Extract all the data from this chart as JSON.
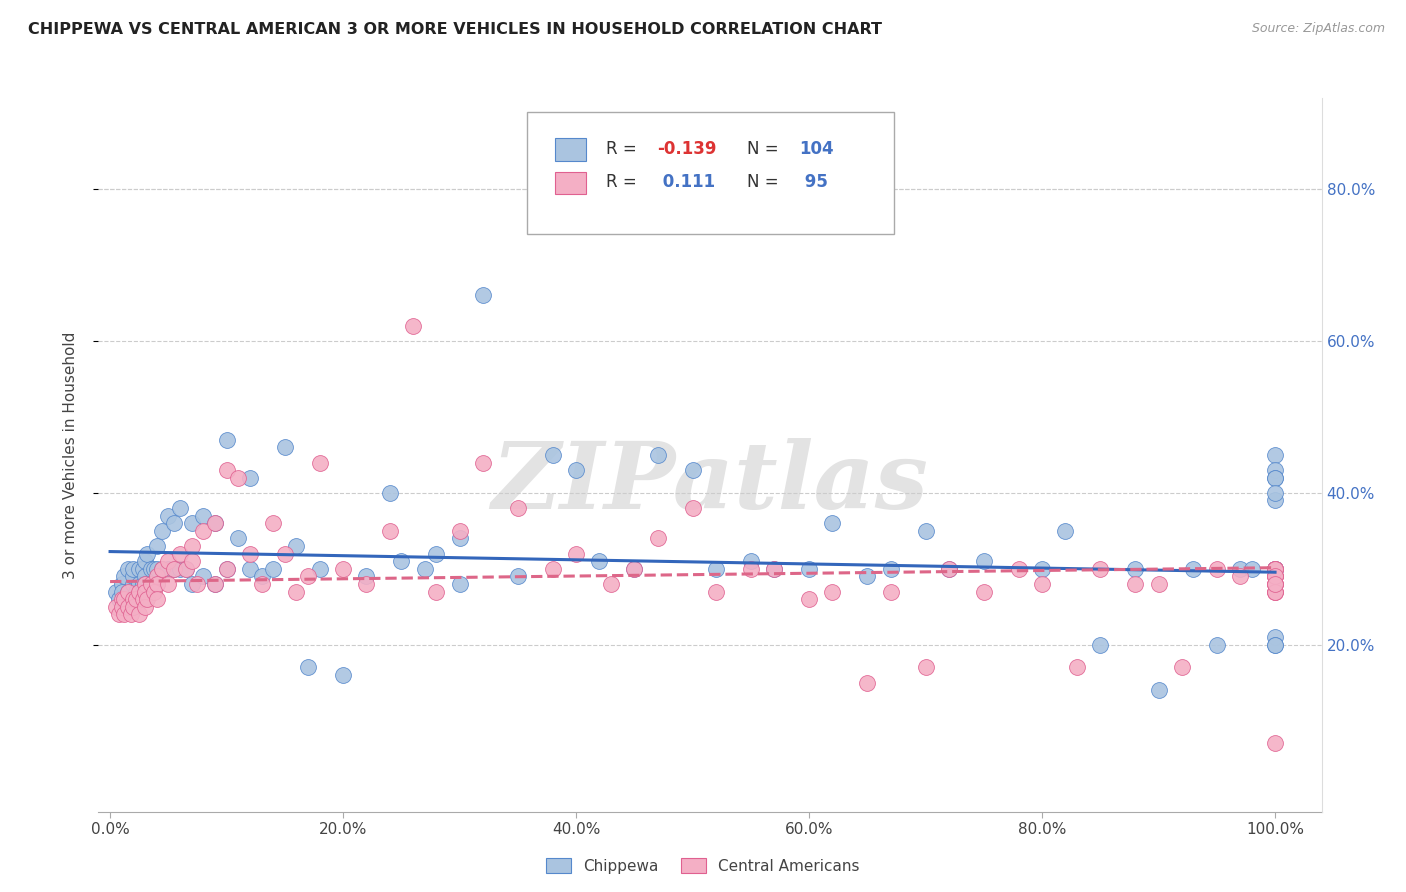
{
  "title": "CHIPPEWA VS CENTRAL AMERICAN 3 OR MORE VEHICLES IN HOUSEHOLD CORRELATION CHART",
  "source": "Source: ZipAtlas.com",
  "ylabel": "3 or more Vehicles in Household",
  "ytick_vals": [
    0.2,
    0.4,
    0.6,
    0.8
  ],
  "ytick_labels": [
    "20.0%",
    "40.0%",
    "60.0%",
    "80.0%"
  ],
  "xtick_vals": [
    0.0,
    0.2,
    0.4,
    0.6,
    0.8,
    1.0
  ],
  "xtick_labels": [
    "0.0%",
    "20.0%",
    "40.0%",
    "60.0%",
    "80.0%",
    "100.0%"
  ],
  "xlim": [
    -0.01,
    1.04
  ],
  "ylim": [
    -0.02,
    0.92
  ],
  "chippewa_color": "#aac4e0",
  "central_color": "#f4afc5",
  "chippewa_edge_color": "#5588cc",
  "central_edge_color": "#e06090",
  "chippewa_line_color": "#3366bb",
  "central_line_color": "#dd6688",
  "chippewa_R": -0.139,
  "central_R": 0.111,
  "watermark": "ZIPatlas",
  "legend_R1": "-0.139",
  "legend_N1": "104",
  "legend_R2": "0.111",
  "legend_N2": "95",
  "chippewa_x": [
    0.005,
    0.008,
    0.01,
    0.01,
    0.012,
    0.012,
    0.015,
    0.015,
    0.015,
    0.02,
    0.02,
    0.02,
    0.02,
    0.022,
    0.025,
    0.025,
    0.025,
    0.025,
    0.028,
    0.028,
    0.03,
    0.03,
    0.03,
    0.03,
    0.032,
    0.035,
    0.035,
    0.038,
    0.04,
    0.04,
    0.04,
    0.045,
    0.045,
    0.05,
    0.05,
    0.055,
    0.055,
    0.06,
    0.06,
    0.065,
    0.07,
    0.07,
    0.08,
    0.08,
    0.09,
    0.09,
    0.1,
    0.1,
    0.11,
    0.12,
    0.12,
    0.13,
    0.14,
    0.15,
    0.16,
    0.17,
    0.18,
    0.2,
    0.22,
    0.24,
    0.25,
    0.27,
    0.28,
    0.3,
    0.3,
    0.32,
    0.35,
    0.38,
    0.4,
    0.42,
    0.45,
    0.47,
    0.5,
    0.52,
    0.55,
    0.57,
    0.6,
    0.62,
    0.65,
    0.67,
    0.7,
    0.72,
    0.75,
    0.8,
    0.82,
    0.85,
    0.88,
    0.9,
    0.93,
    0.95,
    0.97,
    0.98,
    1.0,
    1.0,
    1.0,
    1.0,
    1.0,
    1.0,
    1.0,
    1.0,
    1.0,
    1.0,
    1.0,
    1.0
  ],
  "chippewa_y": [
    0.27,
    0.26,
    0.28,
    0.27,
    0.29,
    0.26,
    0.3,
    0.27,
    0.25,
    0.28,
    0.29,
    0.3,
    0.25,
    0.27,
    0.3,
    0.28,
    0.27,
    0.26,
    0.3,
    0.28,
    0.29,
    0.31,
    0.28,
    0.26,
    0.32,
    0.3,
    0.28,
    0.3,
    0.33,
    0.3,
    0.28,
    0.35,
    0.3,
    0.37,
    0.3,
    0.36,
    0.3,
    0.38,
    0.3,
    0.3,
    0.36,
    0.28,
    0.37,
    0.29,
    0.36,
    0.28,
    0.47,
    0.3,
    0.34,
    0.3,
    0.42,
    0.29,
    0.3,
    0.46,
    0.33,
    0.17,
    0.3,
    0.16,
    0.29,
    0.4,
    0.31,
    0.3,
    0.32,
    0.34,
    0.28,
    0.66,
    0.29,
    0.45,
    0.43,
    0.31,
    0.3,
    0.45,
    0.43,
    0.3,
    0.31,
    0.3,
    0.3,
    0.36,
    0.29,
    0.3,
    0.35,
    0.3,
    0.31,
    0.3,
    0.35,
    0.2,
    0.3,
    0.14,
    0.3,
    0.2,
    0.3,
    0.3,
    0.45,
    0.43,
    0.3,
    0.39,
    0.21,
    0.42,
    0.3,
    0.2,
    0.42,
    0.4,
    0.3,
    0.2
  ],
  "central_x": [
    0.005,
    0.008,
    0.01,
    0.01,
    0.012,
    0.012,
    0.015,
    0.015,
    0.018,
    0.02,
    0.02,
    0.022,
    0.025,
    0.025,
    0.028,
    0.03,
    0.03,
    0.03,
    0.032,
    0.035,
    0.038,
    0.04,
    0.04,
    0.04,
    0.045,
    0.05,
    0.05,
    0.055,
    0.06,
    0.065,
    0.07,
    0.07,
    0.075,
    0.08,
    0.09,
    0.09,
    0.1,
    0.1,
    0.11,
    0.12,
    0.13,
    0.14,
    0.15,
    0.16,
    0.17,
    0.18,
    0.2,
    0.22,
    0.24,
    0.26,
    0.28,
    0.3,
    0.32,
    0.35,
    0.38,
    0.4,
    0.43,
    0.45,
    0.47,
    0.5,
    0.52,
    0.55,
    0.57,
    0.6,
    0.62,
    0.65,
    0.67,
    0.7,
    0.72,
    0.75,
    0.78,
    0.8,
    0.83,
    0.85,
    0.88,
    0.9,
    0.92,
    0.95,
    0.97,
    1.0,
    1.0,
    1.0,
    1.0,
    1.0,
    1.0,
    1.0,
    1.0,
    1.0,
    1.0,
    1.0,
    1.0,
    1.0,
    1.0,
    1.0,
    1.0
  ],
  "central_y": [
    0.25,
    0.24,
    0.26,
    0.25,
    0.26,
    0.24,
    0.27,
    0.25,
    0.24,
    0.26,
    0.25,
    0.26,
    0.27,
    0.24,
    0.26,
    0.28,
    0.27,
    0.25,
    0.26,
    0.28,
    0.27,
    0.29,
    0.28,
    0.26,
    0.3,
    0.31,
    0.28,
    0.3,
    0.32,
    0.3,
    0.33,
    0.31,
    0.28,
    0.35,
    0.36,
    0.28,
    0.43,
    0.3,
    0.42,
    0.32,
    0.28,
    0.36,
    0.32,
    0.27,
    0.29,
    0.44,
    0.3,
    0.28,
    0.35,
    0.62,
    0.27,
    0.35,
    0.44,
    0.38,
    0.3,
    0.32,
    0.28,
    0.3,
    0.34,
    0.38,
    0.27,
    0.3,
    0.3,
    0.26,
    0.27,
    0.15,
    0.27,
    0.17,
    0.3,
    0.27,
    0.3,
    0.28,
    0.17,
    0.3,
    0.28,
    0.28,
    0.17,
    0.3,
    0.29,
    0.3,
    0.29,
    0.07,
    0.27,
    0.28,
    0.3,
    0.29,
    0.27,
    0.28,
    0.3,
    0.29,
    0.28,
    0.27,
    0.3,
    0.29,
    0.28
  ]
}
